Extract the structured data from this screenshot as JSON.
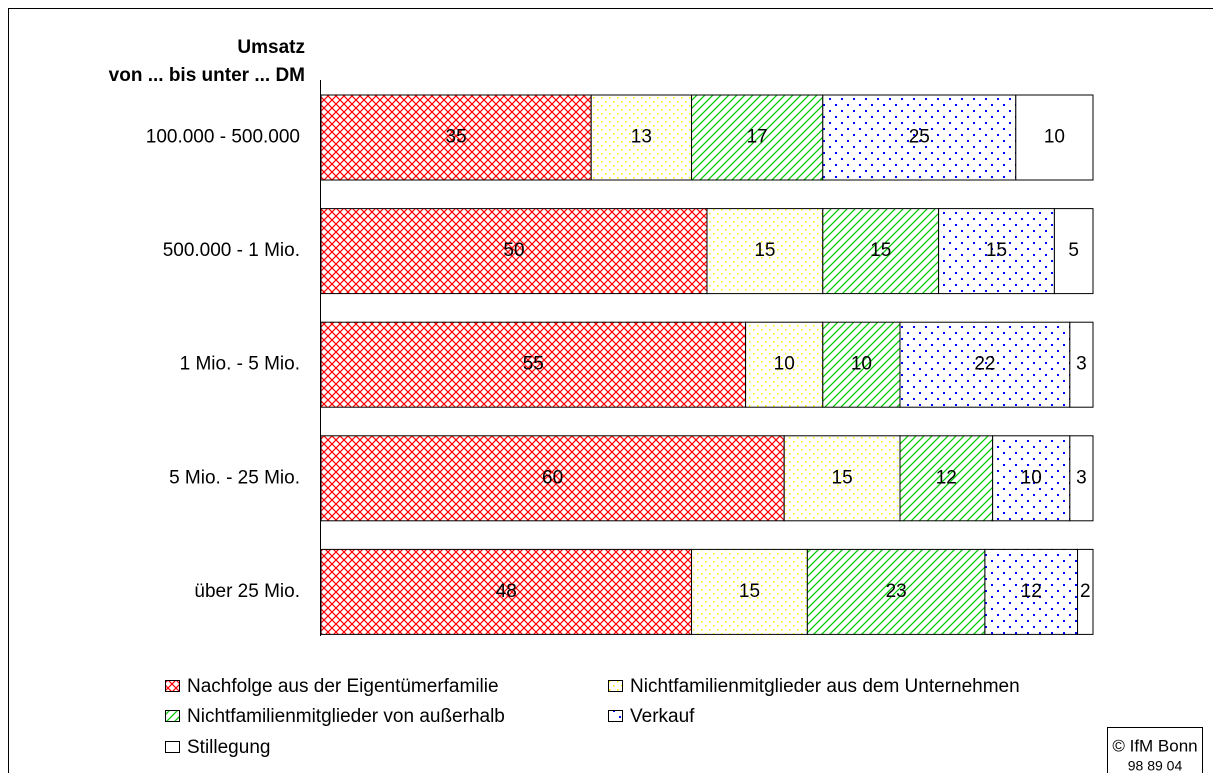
{
  "chart_data": {
    "type": "stacked_bar_horizontal",
    "ylabel": [
      "Umsatz",
      "von ... bis unter ... DM"
    ],
    "categories": [
      "100.000 - 500.000",
      "500.000 - 1 Mio.",
      "1 Mio. - 5 Mio.",
      "5 Mio. - 25 Mio.",
      "über 25 Mio."
    ],
    "xlim": [
      0,
      100
    ],
    "series": [
      {
        "name": "Nachfolge aus der Eigentümerfamilie",
        "color": "#ff0000",
        "pattern": "crosshatch",
        "values": [
          35,
          50,
          55,
          60,
          48
        ]
      },
      {
        "name": "Nichtfamilienmitglieder aus dem Unternehmen",
        "color": "#ffff00",
        "pattern": "dots",
        "values": [
          13,
          15,
          10,
          15,
          15
        ]
      },
      {
        "name": "Nichtfamilienmitglieder von außerhalb",
        "color": "#00cc00",
        "pattern": "diagonal",
        "values": [
          17,
          15,
          10,
          12,
          23
        ]
      },
      {
        "name": "Verkauf",
        "color": "#0000ff",
        "pattern": "sparse-dots",
        "values": [
          25,
          15,
          22,
          10,
          12
        ]
      },
      {
        "name": "Stillegung",
        "color": "#ffffff",
        "pattern": "solid",
        "values": [
          10,
          5,
          3,
          3,
          2
        ]
      }
    ],
    "footer": [
      "© IfM Bonn",
      "98 89 04"
    ]
  }
}
